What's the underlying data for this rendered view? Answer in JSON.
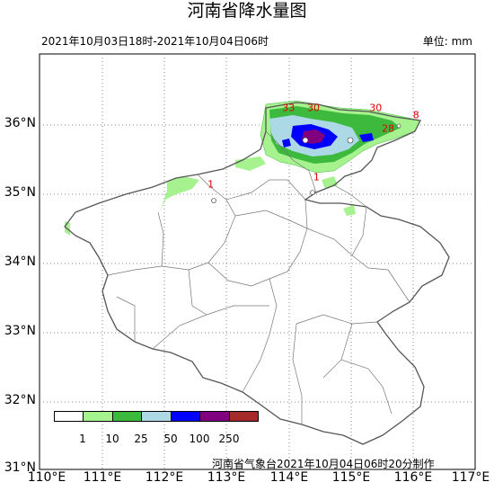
{
  "title": "河南省降水量图",
  "period": "2021年10月03日18时-2021年10月04日06时",
  "unit": "单位: mm",
  "credit": "河南省气象台2021年10月04日06时20分制作",
  "lat_labels": [
    "36°N",
    "35°N",
    "34°N",
    "33°N",
    "32°N",
    "31°N"
  ],
  "lon_labels": [
    "110°E",
    "111°E",
    "112°E",
    "113°E",
    "114°E",
    "115°E",
    "116°E",
    "117°E"
  ],
  "legend": {
    "colors": [
      "#ffffff",
      "#a6f28f",
      "#3dba3d",
      "#add8e6",
      "#0000ff",
      "#800080",
      "#a52a2a"
    ],
    "ticks": [
      "1",
      "10",
      "25",
      "50",
      "100",
      "250"
    ]
  },
  "rain_labels": [
    {
      "value": "33",
      "lon": 113.9,
      "lat": 36.2
    },
    {
      "value": "30",
      "lon": 114.3,
      "lat": 36.2
    },
    {
      "value": "30",
      "lon": 115.3,
      "lat": 36.2
    },
    {
      "value": "8",
      "lon": 116.0,
      "lat": 36.1
    },
    {
      "value": "28",
      "lon": 115.5,
      "lat": 35.9
    },
    {
      "value": "1",
      "lon": 112.7,
      "lat": 35.1
    },
    {
      "value": "1",
      "lon": 114.4,
      "lat": 35.2
    }
  ]
}
